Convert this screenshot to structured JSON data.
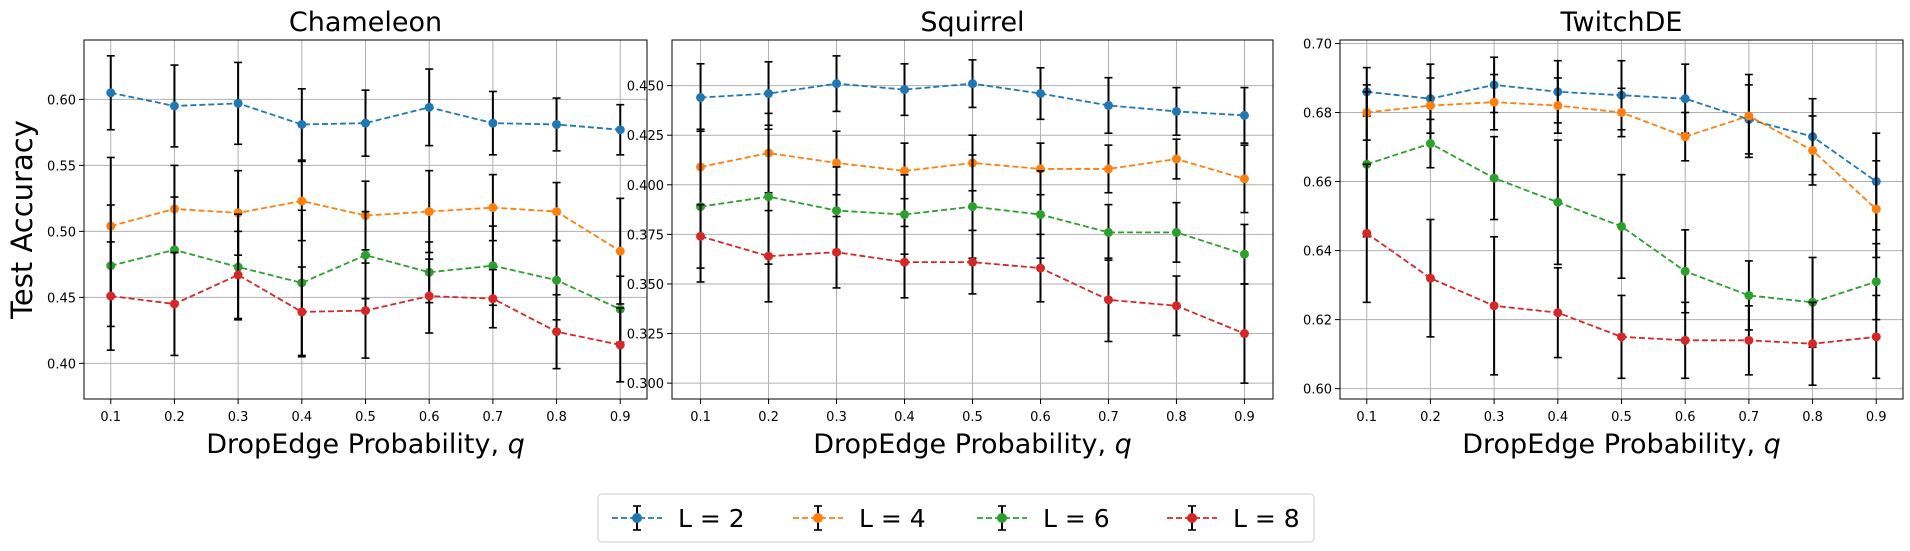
{
  "chart_data": {
    "type": "line",
    "grid": true,
    "x_ticks": [
      "0.1",
      "0.2",
      "0.3",
      "0.4",
      "0.5",
      "0.6",
      "0.7",
      "0.8",
      "0.9"
    ],
    "x": [
      0.1,
      0.2,
      0.3,
      0.4,
      0.5,
      0.6,
      0.7,
      0.8,
      0.9
    ],
    "series_meta": [
      {
        "name": "L = 2",
        "color": "#1f77b4"
      },
      {
        "name": "L = 4",
        "color": "#ff7f0e"
      },
      {
        "name": "L = 6",
        "color": "#2ca02c"
      },
      {
        "name": "L = 8",
        "color": "#d62728"
      }
    ],
    "legend": {
      "placement": "bottom-center",
      "entries": [
        "L = 2",
        "L = 4",
        "L = 6",
        "L = 8"
      ]
    },
    "panels": [
      {
        "title": "Chameleon",
        "xlabel": "DropEdge Probability, q",
        "ylabel": "Test Accuracy",
        "ylim": [
          0.373,
          0.645
        ],
        "y_ticks": [
          "0.40",
          "0.45",
          "0.50",
          "0.55",
          "0.60"
        ],
        "y_tick_values": [
          0.4,
          0.45,
          0.5,
          0.55,
          0.6
        ],
        "series": [
          {
            "name": "L = 2",
            "values": [
              0.605,
              0.595,
              0.597,
              0.581,
              0.582,
              0.594,
              0.582,
              0.581,
              0.577
            ],
            "errors": [
              0.028,
              0.031,
              0.031,
              0.027,
              0.025,
              0.029,
              0.024,
              0.02,
              0.019
            ]
          },
          {
            "name": "L = 4",
            "values": [
              0.504,
              0.517,
              0.514,
              0.523,
              0.512,
              0.515,
              0.518,
              0.515,
              0.485
            ],
            "errors": [
              0.052,
              0.033,
              0.032,
              0.03,
              0.026,
              0.031,
              0.025,
              0.022,
              0.04
            ]
          },
          {
            "name": "L = 6",
            "values": [
              0.474,
              0.486,
              0.473,
              0.461,
              0.482,
              0.469,
              0.474,
              0.463,
              0.441
            ],
            "errors": [
              0.046,
              0.04,
              0.04,
              0.055,
              0.033,
              0.023,
              0.03,
              0.03,
              0.025
            ]
          },
          {
            "name": "L = 8",
            "values": [
              0.451,
              0.445,
              0.467,
              0.439,
              0.44,
              0.451,
              0.449,
              0.424,
              0.414
            ],
            "errors": [
              0.041,
              0.039,
              0.033,
              0.034,
              0.036,
              0.028,
              0.022,
              0.028,
              0.028
            ]
          }
        ]
      },
      {
        "title": "Squirrel",
        "xlabel": "DropEdge Probability, q",
        "ylabel": "",
        "ylim": [
          0.292,
          0.473
        ],
        "y_ticks": [
          "0.300",
          "0.325",
          "0.350",
          "0.375",
          "0.400",
          "0.425",
          "0.450"
        ],
        "y_tick_values": [
          0.3,
          0.325,
          0.35,
          0.375,
          0.4,
          0.425,
          0.45
        ],
        "series": [
          {
            "name": "L = 2",
            "values": [
              0.444,
              0.446,
              0.451,
              0.448,
              0.451,
              0.446,
              0.44,
              0.437,
              0.435
            ],
            "errors": [
              0.017,
              0.016,
              0.014,
              0.013,
              0.012,
              0.013,
              0.014,
              0.012,
              0.014
            ]
          },
          {
            "name": "L = 4",
            "values": [
              0.409,
              0.416,
              0.411,
              0.407,
              0.411,
              0.408,
              0.408,
              0.413,
              0.403
            ],
            "errors": [
              0.019,
              0.02,
              0.016,
              0.014,
              0.014,
              0.013,
              0.012,
              0.01,
              0.017
            ]
          },
          {
            "name": "L = 6",
            "values": [
              0.389,
              0.394,
              0.387,
              0.385,
              0.389,
              0.385,
              0.376,
              0.376,
              0.365
            ],
            "errors": [
              0.038,
              0.034,
              0.022,
              0.02,
              0.026,
              0.022,
              0.014,
              0.015,
              0.015
            ]
          },
          {
            "name": "L = 8",
            "values": [
              0.374,
              0.364,
              0.366,
              0.361,
              0.361,
              0.358,
              0.342,
              0.339,
              0.325
            ],
            "errors": [
              0.016,
              0.023,
              0.018,
              0.018,
              0.016,
              0.017,
              0.021,
              0.015,
              0.025
            ]
          }
        ]
      },
      {
        "title": "TwitchDE",
        "xlabel": "DropEdge Probability, q",
        "ylabel": "",
        "ylim": [
          0.597,
          0.701
        ],
        "y_ticks": [
          "0.60",
          "0.62",
          "0.64",
          "0.66",
          "0.68",
          "0.70"
        ],
        "y_tick_values": [
          0.6,
          0.62,
          0.64,
          0.66,
          0.68,
          0.7
        ],
        "series": [
          {
            "name": "L = 2",
            "values": [
              0.686,
              0.684,
              0.688,
              0.686,
              0.685,
              0.684,
              0.678,
              0.673,
              0.66
            ],
            "errors": [
              0.007,
              0.01,
              0.008,
              0.009,
              0.01,
              0.01,
              0.01,
              0.011,
              0.014
            ]
          },
          {
            "name": "L = 4",
            "values": [
              0.68,
              0.682,
              0.683,
              0.682,
              0.68,
              0.673,
              0.679,
              0.669,
              0.652
            ],
            "errors": [
              0.008,
              0.008,
              0.008,
              0.008,
              0.007,
              0.007,
              0.012,
              0.01,
              0.014
            ]
          },
          {
            "name": "L = 6",
            "values": [
              0.665,
              0.671,
              0.661,
              0.654,
              0.647,
              0.634,
              0.627,
              0.625,
              0.631
            ],
            "errors": [
              0.021,
              0.007,
              0.012,
              0.018,
              0.015,
              0.012,
              0.01,
              0.013,
              0.011
            ]
          },
          {
            "name": "L = 8",
            "values": [
              0.645,
              0.632,
              0.624,
              0.622,
              0.615,
              0.614,
              0.614,
              0.613,
              0.615
            ],
            "errors": [
              0.02,
              0.017,
              0.02,
              0.013,
              0.012,
              0.011,
              0.01,
              0.012,
              0.012
            ]
          }
        ]
      }
    ]
  }
}
